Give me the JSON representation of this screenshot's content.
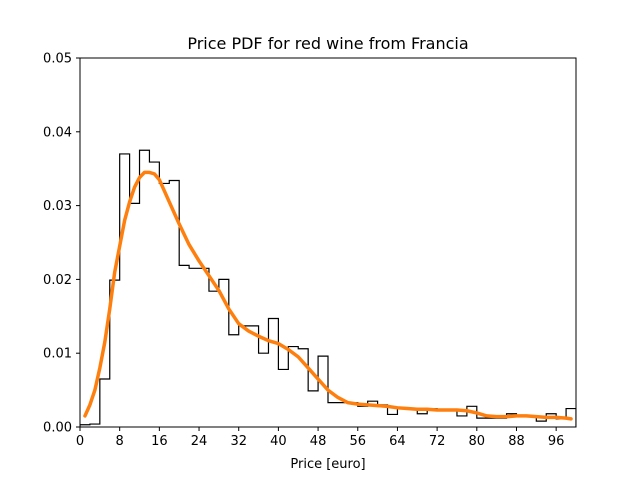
{
  "chart_data": {
    "type": "line",
    "title": "Price PDF for red wine from Francia",
    "xlabel": "Price [euro]",
    "ylabel": "",
    "xlim": [
      0,
      100
    ],
    "ylim": [
      0,
      0.05
    ],
    "xticks": [
      0,
      8,
      16,
      24,
      32,
      40,
      48,
      56,
      64,
      72,
      80,
      88,
      96
    ],
    "yticks": [
      "0.00",
      "0.01",
      "0.02",
      "0.03",
      "0.04",
      "0.05"
    ],
    "grid": false,
    "legend": "none",
    "series": [
      {
        "kind": "step-histogram",
        "color": "#000000",
        "bin_edges": [
          0,
          2,
          4,
          6,
          8,
          10,
          12,
          14,
          16,
          18,
          20,
          22,
          24,
          26,
          28,
          30,
          32,
          34,
          36,
          38,
          40,
          42,
          44,
          46,
          48,
          50,
          52,
          54,
          56,
          58,
          60,
          62,
          64,
          66,
          68,
          70,
          72,
          74,
          76,
          78,
          80,
          82,
          84,
          86,
          88,
          90,
          92,
          94,
          96,
          98,
          100
        ],
        "values": [
          0.0003,
          0.0004,
          0.0065,
          0.0199,
          0.037,
          0.0303,
          0.0375,
          0.0359,
          0.033,
          0.0334,
          0.0219,
          0.0215,
          0.0215,
          0.0184,
          0.02,
          0.0125,
          0.0137,
          0.0137,
          0.01,
          0.0147,
          0.0078,
          0.0109,
          0.0106,
          0.0049,
          0.0096,
          0.0033,
          0.0033,
          0.0033,
          0.0028,
          0.0035,
          0.003,
          0.0017,
          0.0025,
          0.0025,
          0.0018,
          0.0025,
          0.0024,
          0.0024,
          0.0015,
          0.0028,
          0.0012,
          0.0012,
          0.0012,
          0.0018,
          0.0014,
          0.0014,
          0.0008,
          0.0018,
          0.0011,
          0.0025
        ]
      },
      {
        "kind": "kde",
        "color": "#ff7f0e",
        "x": [
          1,
          2,
          3,
          4,
          5,
          6,
          7,
          8,
          9,
          10,
          11,
          12,
          13,
          14,
          15,
          16,
          17,
          18,
          20,
          22,
          24,
          26,
          28,
          30,
          32,
          34,
          36,
          38,
          40,
          42,
          44,
          46,
          48,
          50,
          52,
          54,
          56,
          58,
          60,
          62,
          64,
          66,
          68,
          70,
          72,
          74,
          76,
          78,
          80,
          82,
          84,
          86,
          88,
          90,
          92,
          94,
          96,
          98,
          99
        ],
        "y": [
          0.0015,
          0.003,
          0.005,
          0.008,
          0.0115,
          0.016,
          0.021,
          0.0245,
          0.028,
          0.0305,
          0.0325,
          0.0338,
          0.0345,
          0.0345,
          0.0343,
          0.0335,
          0.032,
          0.0305,
          0.0275,
          0.0247,
          0.0225,
          0.0205,
          0.0185,
          0.016,
          0.014,
          0.013,
          0.0123,
          0.0117,
          0.0113,
          0.0105,
          0.0095,
          0.008,
          0.0065,
          0.005,
          0.004,
          0.0033,
          0.0031,
          0.003,
          0.0029,
          0.0028,
          0.0026,
          0.0025,
          0.0024,
          0.0024,
          0.0023,
          0.0023,
          0.0023,
          0.0022,
          0.0019,
          0.0015,
          0.0014,
          0.0014,
          0.0015,
          0.0015,
          0.0014,
          0.0013,
          0.0013,
          0.0012,
          0.0011
        ]
      }
    ]
  }
}
